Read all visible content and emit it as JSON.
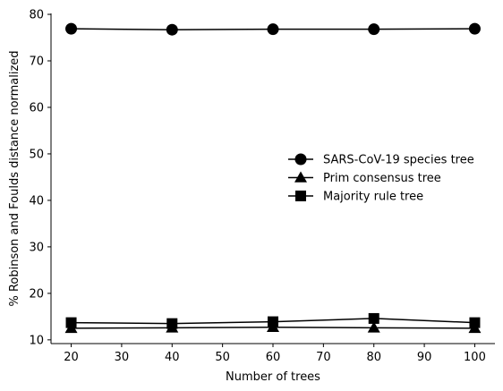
{
  "chart_data": {
    "type": "line",
    "xlabel": "Number of trees",
    "ylabel": "% Robinson and Foulds distance normalized",
    "xlim": [
      16,
      104
    ],
    "ylim": [
      9.2,
      80.2
    ],
    "xticks": [
      20,
      30,
      40,
      50,
      60,
      70,
      80,
      90,
      100
    ],
    "yticks": [
      10,
      20,
      30,
      40,
      50,
      60,
      70,
      80
    ],
    "x": [
      20,
      40,
      60,
      80,
      100
    ],
    "grid": false,
    "legend_position": "center-right",
    "series": [
      {
        "name": "SARS-CoV-19 species tree",
        "marker": "circle",
        "color": "#000000",
        "values": [
          76.9,
          76.7,
          76.8,
          76.8,
          76.9
        ]
      },
      {
        "name": "Prim consensus tree",
        "marker": "triangle",
        "color": "#000000",
        "values": [
          12.5,
          12.6,
          12.7,
          12.6,
          12.5
        ]
      },
      {
        "name": "Majority rule tree",
        "marker": "square",
        "color": "#000000",
        "values": [
          13.7,
          13.5,
          13.9,
          14.6,
          13.7
        ]
      }
    ]
  }
}
